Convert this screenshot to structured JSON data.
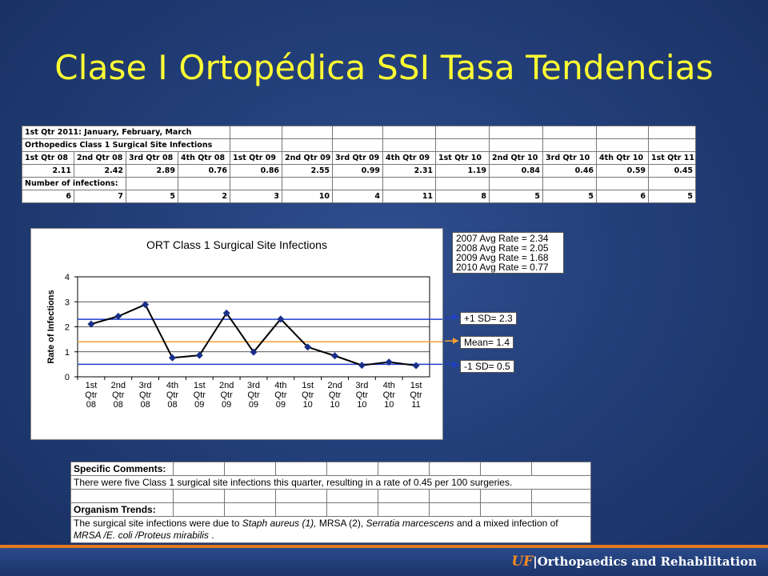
{
  "slide": {
    "title": "Clase I Ortopédica SSI Tasa Tendencias",
    "footer_uf": "UF",
    "footer_sep": "|",
    "footer_text": "Orthopaedics and Rehabilitation"
  },
  "table": {
    "row1": "1st Qtr 2011: January, February, March",
    "row2": "Orthopedics Class 1 Surgical Site Infections",
    "quarters": [
      "1st Qtr 08",
      "2nd Qtr 08",
      "3rd Qtr 08",
      "4th Qtr 08",
      "1st Qtr 09",
      "2nd Qtr 09",
      "3rd Qtr 09",
      "4th Qtr 09",
      "1st Qtr 10",
      "2nd Qtr 10",
      "3rd Qtr 10",
      "4th Qtr 10",
      "1st Qtr 11"
    ],
    "rates": [
      "2.11",
      "2.42",
      "2.89",
      "0.76",
      "0.86",
      "2.55",
      "0.99",
      "2.31",
      "1.19",
      "0.84",
      "0.46",
      "0.59",
      "0.45"
    ],
    "infections_label": "Number of infections:",
    "infections": [
      "6",
      "7",
      "5",
      "2",
      "3",
      "10",
      "4",
      "11",
      "8",
      "5",
      "5",
      "6",
      "5"
    ]
  },
  "chart_data": {
    "type": "line",
    "title": "ORT Class 1 Surgical Site Infections",
    "ylabel": "Rate of Infections",
    "xlabel": "",
    "ylim": [
      0,
      4
    ],
    "yticks": [
      "0",
      "1",
      "2",
      "3",
      "4"
    ],
    "categories": [
      [
        "1st",
        "Qtr",
        "08"
      ],
      [
        "2nd",
        "Qtr",
        "08"
      ],
      [
        "3rd",
        "Qtr",
        "08"
      ],
      [
        "4th",
        "Qtr",
        "08"
      ],
      [
        "1st",
        "Qtr",
        "09"
      ],
      [
        "2nd",
        "Qtr",
        "09"
      ],
      [
        "3rd",
        "Qtr",
        "09"
      ],
      [
        "4th",
        "Qtr",
        "09"
      ],
      [
        "1st",
        "Qtr",
        "10"
      ],
      [
        "2nd",
        "Qtr",
        "10"
      ],
      [
        "3rd",
        "Qtr",
        "10"
      ],
      [
        "4th",
        "Qtr",
        "10"
      ],
      [
        "1st",
        "Qtr",
        "11"
      ]
    ],
    "values": [
      2.11,
      2.42,
      2.89,
      0.76,
      0.86,
      2.55,
      0.99,
      2.31,
      1.19,
      0.84,
      0.46,
      0.59,
      0.45
    ],
    "reference_lines": [
      {
        "label": "+1 SD= 2.3",
        "value": 2.3,
        "color": "#1f3fcf"
      },
      {
        "label": "Mean= 1.4",
        "value": 1.4,
        "color": "#f5a030"
      },
      {
        "label": "-1 SD= 0.5",
        "value": 0.5,
        "color": "#1f3fcf"
      }
    ],
    "averages": [
      "2007 Avg Rate = 2.34",
      "2008 Avg Rate = 2.05",
      "2009 Avg Rate = 1.68",
      "2010 Avg Rate =  0.77"
    ],
    "grid": true,
    "line_color": "#000000",
    "marker_color": "#1a2f8a"
  },
  "comments": {
    "specific_label": "Specific Comments:",
    "specific_text": "There were five Class 1 surgical site infections this quarter, resulting in a rate of 0.45 per 100 surgeries.",
    "organism_label": "Organism Trends:",
    "organism_part1": "The surgical site infections were due to ",
    "organism_italic1": "Staph aureus (1),",
    "organism_part2": "  MRSA (2), ",
    "organism_italic2": "Serratia marcescens",
    "organism_part3": "  and a mixed infection of ",
    "organism_italic3": "MRSA /E. coli /Proteus mirabilis",
    "organism_part4": " ."
  }
}
